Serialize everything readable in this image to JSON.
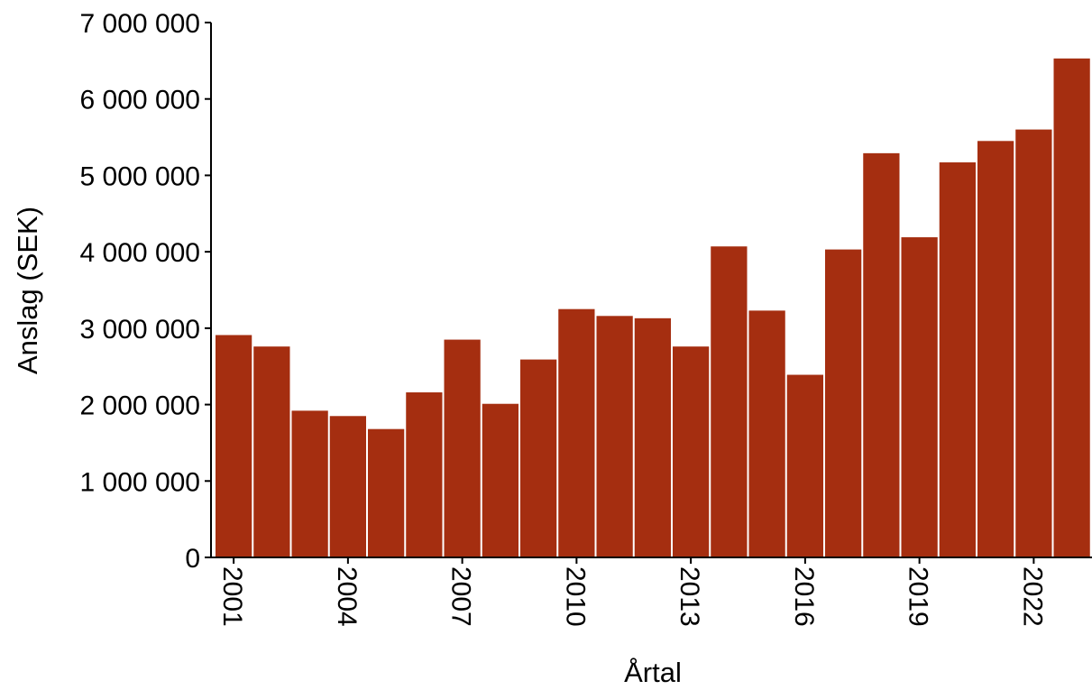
{
  "chart_data": {
    "type": "bar",
    "title": "",
    "xlabel": "Årtal",
    "ylabel": "Anslag (SEK)",
    "ylim": [
      0,
      7000000
    ],
    "yticks": [
      0,
      1000000,
      2000000,
      3000000,
      4000000,
      5000000,
      6000000,
      7000000
    ],
    "ytick_labels": [
      "0",
      "1 000 000",
      "2 000 000",
      "3 000 000",
      "4 000 000",
      "5 000 000",
      "6 000 000",
      "7 000 000"
    ],
    "xtick_labels": [
      "2001",
      "2004",
      "2007",
      "2010",
      "2013",
      "2016",
      "2019",
      "2022"
    ],
    "xtick_years": [
      2001,
      2004,
      2007,
      2010,
      2013,
      2016,
      2019,
      2022
    ],
    "categories": [
      "2001",
      "2002",
      "2003",
      "2004",
      "2005",
      "2006",
      "2007",
      "2008",
      "2009",
      "2010",
      "2011",
      "2012",
      "2013",
      "2014",
      "2015",
      "2016",
      "2017",
      "2018",
      "2019",
      "2020",
      "2021",
      "2022",
      "2023"
    ],
    "values": [
      2910000,
      2760000,
      1920000,
      1850000,
      1680000,
      2160000,
      2850000,
      2010000,
      2590000,
      3250000,
      3160000,
      3130000,
      2760000,
      4070000,
      3230000,
      2390000,
      4030000,
      5290000,
      4190000,
      5170000,
      5450000,
      5600000,
      6530000
    ],
    "grid": false,
    "legend": "none",
    "bar_color": "#a52e10",
    "axis_color": "#000000"
  }
}
